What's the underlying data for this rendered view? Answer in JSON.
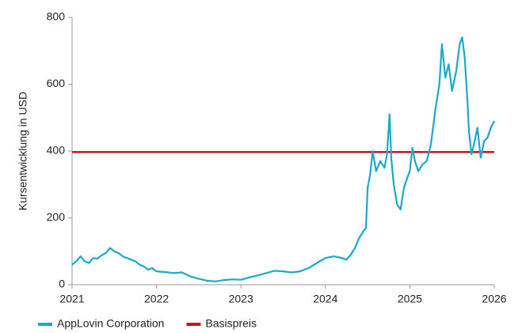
{
  "chart_data": {
    "type": "line",
    "y_label": "Kursentwicklung in USD",
    "x": [
      2021.0,
      2021.05,
      2021.1,
      2021.15,
      2021.2,
      2021.25,
      2021.3,
      2021.35,
      2021.4,
      2021.45,
      2021.5,
      2021.55,
      2021.6,
      2021.65,
      2021.7,
      2021.75,
      2021.8,
      2021.85,
      2021.9,
      2021.95,
      2022.0,
      2022.1,
      2022.2,
      2022.3,
      2022.4,
      2022.5,
      2022.6,
      2022.7,
      2022.8,
      2022.9,
      2023.0,
      2023.1,
      2023.2,
      2023.3,
      2023.4,
      2023.5,
      2023.6,
      2023.7,
      2023.8,
      2023.9,
      2024.0,
      2024.1,
      2024.2,
      2024.25,
      2024.3,
      2024.35,
      2024.4,
      2024.45,
      2024.48,
      2024.5,
      2024.53,
      2024.56,
      2024.6,
      2024.65,
      2024.7,
      2024.73,
      2024.76,
      2024.78,
      2024.81,
      2024.85,
      2024.89,
      2024.93,
      2024.97,
      2025.0,
      2025.03,
      2025.06,
      2025.1,
      2025.15,
      2025.2,
      2025.25,
      2025.3,
      2025.35,
      2025.38,
      2025.42,
      2025.46,
      2025.5,
      2025.55,
      2025.59,
      2025.62,
      2025.65,
      2025.68,
      2025.7,
      2025.73,
      2025.76,
      2025.8,
      2025.84,
      2025.88,
      2025.92,
      2025.96,
      2026.0
    ],
    "series": [
      {
        "name": "AppLovin Corporation",
        "color": "#1ba9c9",
        "values": [
          60,
          70,
          85,
          70,
          65,
          80,
          78,
          88,
          95,
          110,
          100,
          95,
          85,
          80,
          75,
          70,
          60,
          55,
          45,
          50,
          40,
          38,
          35,
          37,
          25,
          18,
          12,
          10,
          14,
          16,
          15,
          22,
          28,
          35,
          42,
          40,
          37,
          40,
          50,
          65,
          80,
          85,
          80,
          75,
          90,
          110,
          140,
          160,
          170,
          290,
          330,
          400,
          340,
          370,
          350,
          390,
          510,
          380,
          300,
          240,
          225,
          290,
          320,
          340,
          410,
          370,
          340,
          360,
          370,
          420,
          520,
          600,
          720,
          620,
          660,
          580,
          640,
          720,
          740,
          680,
          560,
          460,
          390,
          420,
          470,
          380,
          430,
          440,
          470,
          490
        ]
      }
    ],
    "hlines": [
      {
        "name": "Basispreis",
        "color": "#d0101e",
        "value": 397
      }
    ],
    "xlim": [
      2021,
      2026
    ],
    "xticks": [
      2021,
      2022,
      2023,
      2024,
      2025,
      2026
    ],
    "ylim": [
      0,
      800
    ],
    "yticks": [
      0,
      200,
      400,
      600,
      800
    ],
    "grid": false,
    "legend": "bottom"
  }
}
